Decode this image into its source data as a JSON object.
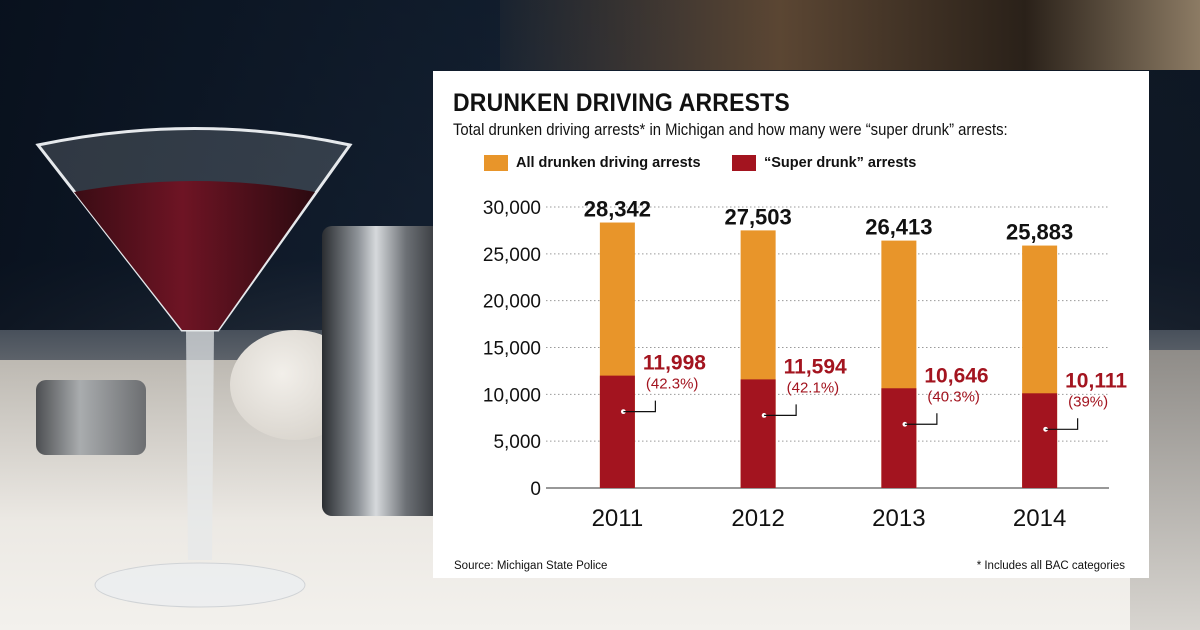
{
  "colors": {
    "all_arrests": "#E8952A",
    "super_drunk": "#A3141F",
    "annotation": "#A3141F",
    "grid": "#9a9a9a",
    "text": "#111111"
  },
  "chart_data": {
    "type": "bar",
    "stacked_overlay": true,
    "title": "DRUNKEN DRIVING ARRESTS",
    "subtitle": "Total drunken driving arrests* in Michigan and how many were “super drunk” arrests:",
    "categories": [
      "2011",
      "2012",
      "2013",
      "2014"
    ],
    "series": [
      {
        "name": "All drunken driving arrests",
        "values": [
          28342,
          27503,
          26413,
          25883
        ],
        "labels": [
          "28,342",
          "27,503",
          "26,413",
          "25,883"
        ]
      },
      {
        "name": "“Super drunk” arrests",
        "values": [
          11998,
          11594,
          10646,
          10111
        ],
        "labels": [
          "11,998",
          "11,594",
          "10,646",
          "10,111"
        ],
        "percent_labels": [
          "(42.3%)",
          "(42.1%)",
          "(40.3%)",
          "(39%)"
        ]
      }
    ],
    "ylim": [
      0,
      30000
    ],
    "yticks": [
      0,
      5000,
      10000,
      15000,
      20000,
      25000,
      30000
    ],
    "ytick_labels": [
      "0",
      "5,000",
      "10,000",
      "15,000",
      "20,000",
      "25,000",
      "30,000"
    ],
    "xlabel": "",
    "ylabel": "",
    "grid": true,
    "grid_style": "dotted",
    "legend_position": "top-left",
    "source": "Source: Michigan State Police",
    "footnote": "* Includes all BAC categories"
  }
}
